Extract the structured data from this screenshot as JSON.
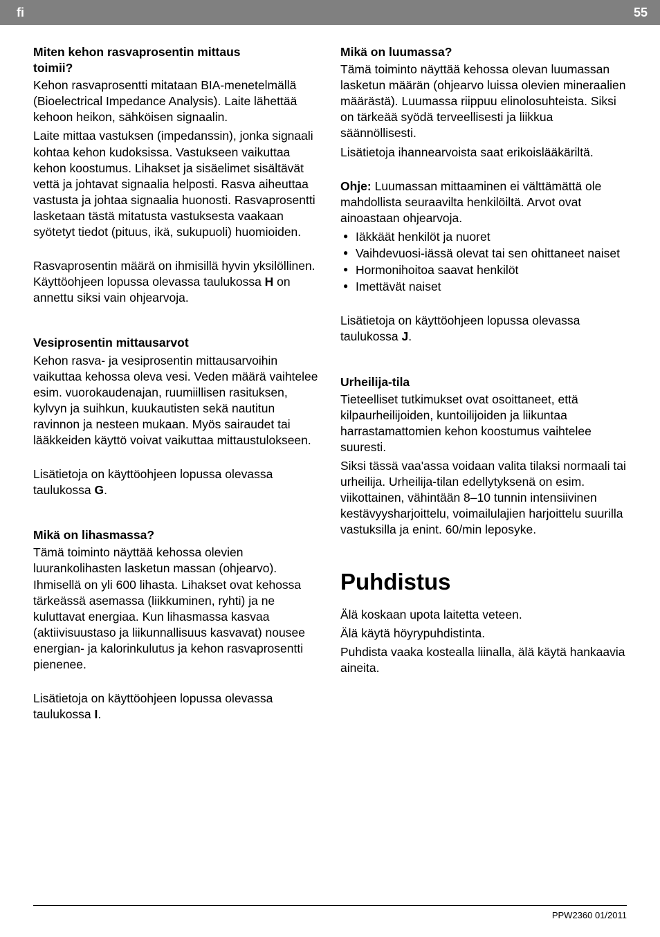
{
  "header": {
    "lang": "fi",
    "page": "55"
  },
  "left": {
    "s1_heading_l1": "Miten kehon rasvaprosentin mittaus",
    "s1_heading_l2": "toimii?",
    "s1_p1": "Kehon rasvaprosentti mitataan BIA-menetelmällä (Bioelectrical Impedance Analysis). Laite lähettää kehoon heikon, sähköisen signaalin.",
    "s1_p2": "Laite mittaa vastuksen (impedanssin), jonka signaali kohtaa kehon kudoksissa. Vastukseen vaikuttaa kehon koostumus. Lihakset ja sisäelimet sisältävät vettä ja johtavat signaalia helposti. Rasva aiheuttaa vastusta ja johtaa signaalia huonosti. Rasvaprosentti lasketaan tästä mitatusta vastuksesta vaakaan syötetyt tiedot (pituus, ikä, sukupuoli) huomioiden.",
    "s1_p3a": "Rasvaprosentin määrä on ihmisillä hyvin yksilöllinen. Käyttöohjeen lopussa olevassa taulukossa ",
    "s1_p3_bold": "H",
    "s1_p3b": " on annettu siksi vain ohjearvoja.",
    "s2_heading": "Vesiprosentin mittausarvot",
    "s2_p1": "Kehon rasva- ja vesiprosentin mittausarvoihin vaikuttaa kehossa oleva vesi. Veden määrä vaihtelee esim. vuorokaudenajan, ruumiillisen rasituksen, kylvyn ja suihkun, kuukautisten sekä nautitun ravinnon ja nesteen mukaan. Myös sairaudet tai lääkkeiden käyttö voivat vaikuttaa mittaustulokseen.",
    "s2_p2a": "Lisätietoja on käyttöohjeen lopussa olevassa taulukossa ",
    "s2_p2_bold": "G",
    "s2_p2b": ".",
    "s3_heading": "Mikä on lihasmassa?",
    "s3_p1": "Tämä toiminto näyttää kehossa olevien luurankolihasten lasketun massan (ohjearvo). Ihmisellä on yli 600 lihasta. Lihakset ovat kehossa tärkeässä asemassa (liikkuminen, ryhti) ja ne kuluttavat energiaa. Kun lihasmassa kasvaa (aktiivisuustaso ja liikunnallisuus kasvavat) nousee energian- ja kalorinkulutus ja kehon rasvaprosentti pienenee.",
    "s3_p2a": "Lisätietoja on käyttöohjeen lopussa olevassa taulukossa ",
    "s3_p2_bold": "I",
    "s3_p2b": "."
  },
  "right": {
    "s4_heading": "Mikä on luumassa?",
    "s4_p1": "Tämä toiminto näyttää kehossa olevan luumassan lasketun määrän (ohjearvo luissa olevien mineraalien määrästä). Luumassa riippuu elinolosuhteista. Siksi on tärkeää syödä terveellisesti ja liikkua säännöllisesti.",
    "s4_p2": "Lisätietoja ihannearvoista saat erikoislääkäriltä.",
    "s4_p3_bold": "Ohje:",
    "s4_p3": " Luumassan mittaaminen ei välttämättä ole mahdollista seuraavilta henkilöiltä. Arvot ovat ainoastaan ohjearvoja.",
    "bullets": {
      "b1": "Iäkkäät henkilöt ja nuoret",
      "b2": "Vaihdevuosi-iässä olevat tai sen ohittaneet naiset",
      "b3": "Hormonihoitoa saavat henkilöt",
      "b4": "Imettävät naiset"
    },
    "s4_p4a": "Lisätietoja on käyttöohjeen lopussa olevassa taulukossa ",
    "s4_p4_bold": "J",
    "s4_p4b": ".",
    "s5_heading": "Urheilija-tila",
    "s5_p1": "Tieteelliset tutkimukset ovat osoittaneet, että kilpaurheilijoiden, kuntoilijoiden ja liikuntaa harrastamattomien kehon koostumus vaihtelee suuresti.",
    "s5_p2": "Siksi tässä vaa'assa voidaan valita tilaksi normaali tai urheilija. Urheilija-tilan edellytyksenä on esim. viikottainen, vähintään 8–10 tunnin intensiivinen kestävyysharjoittelu, voimailulajien harjoittelu suurilla vastuksilla ja enint. 60/min leposyke.",
    "h1": "Puhdistus",
    "clean_p1": "Älä koskaan upota laitetta veteen.",
    "clean_p2": "Älä käytä höyrypuhdistinta.",
    "clean_p3": "Puhdista vaaka kostealla liinalla, älä käytä hankaavia aineita."
  },
  "footer": {
    "text": "PPW2360   01/2011"
  },
  "colors": {
    "header_bg": "#808080",
    "header_text": "#ffffff",
    "body_text": "#000000",
    "background": "#ffffff"
  }
}
